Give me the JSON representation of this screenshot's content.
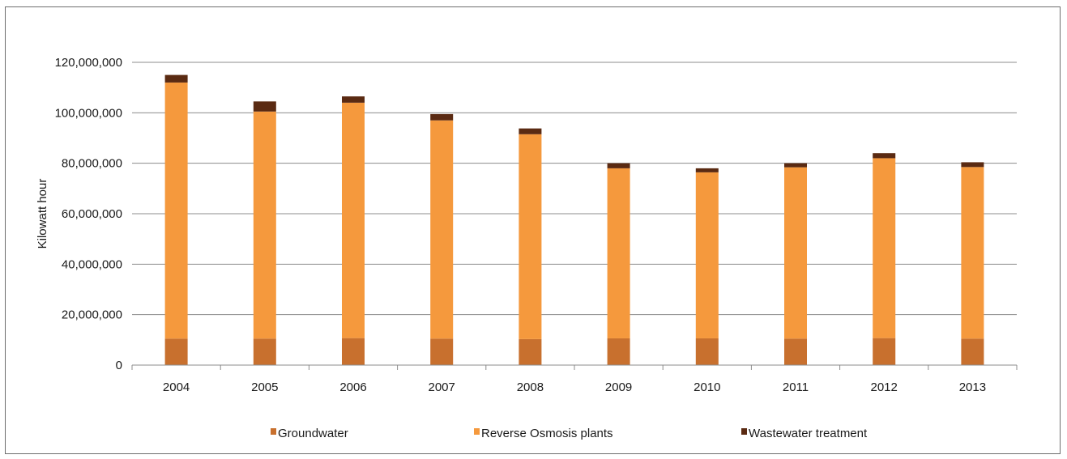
{
  "chart_data": {
    "type": "bar",
    "stacked": true,
    "title": "",
    "xlabel": "",
    "ylabel": "Kilowatt hour",
    "ylim": [
      0,
      120000000
    ],
    "yticks": [
      0,
      20000000,
      40000000,
      60000000,
      80000000,
      100000000,
      120000000
    ],
    "ytick_labels": [
      "0",
      "20,000,000",
      "40,000,000",
      "60,000,000",
      "80,000,000",
      "100,000,000",
      "120,000,000"
    ],
    "grid": true,
    "legend_position": "bottom",
    "categories": [
      "2004",
      "2005",
      "2006",
      "2007",
      "2008",
      "2009",
      "2010",
      "2011",
      "2012",
      "2013"
    ],
    "series": [
      {
        "name": "Groundwater",
        "color": "#c8702e",
        "values": [
          10500000,
          10500000,
          10700000,
          10500000,
          10300000,
          10600000,
          10600000,
          10500000,
          10700000,
          10500000
        ]
      },
      {
        "name": "Reverse Osmosis plants",
        "color": "#f5993d",
        "values": [
          101500000,
          90000000,
          93300000,
          86500000,
          81200000,
          67400000,
          65800000,
          67900000,
          71300000,
          68000000
        ]
      },
      {
        "name": "Wastewater treatment",
        "color": "#5a2a12",
        "values": [
          3000000,
          4000000,
          2500000,
          2500000,
          2300000,
          2000000,
          1600000,
          1600000,
          2000000,
          1900000
        ]
      }
    ]
  }
}
